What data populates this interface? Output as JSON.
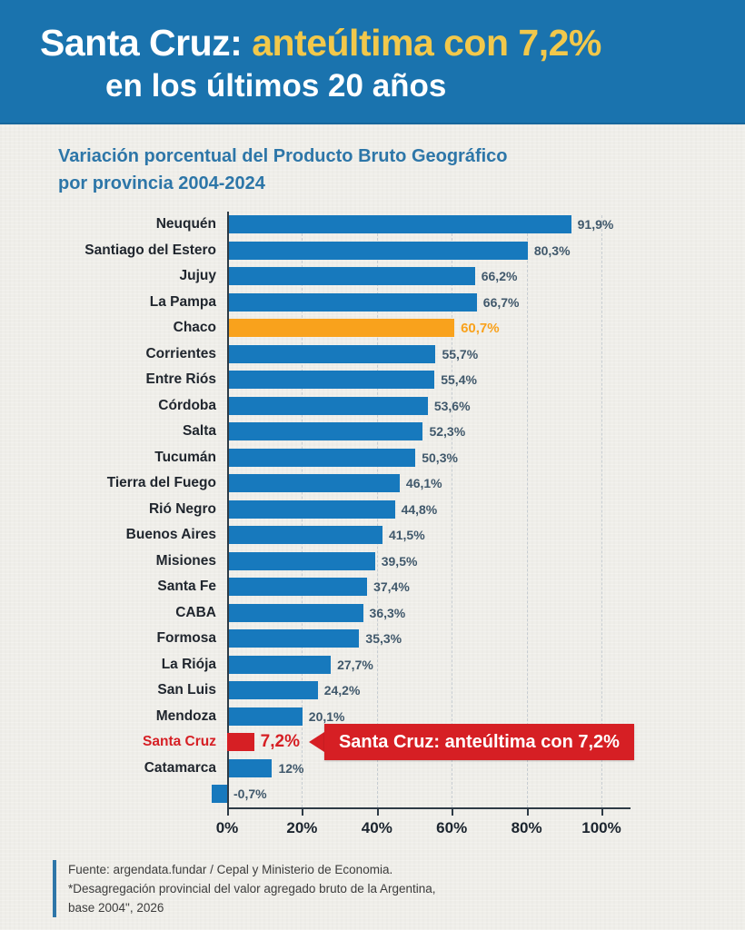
{
  "header": {
    "title_part1": "Santa Cruz:",
    "title_part2": " anteúltima con 7,2%",
    "title_line2": "en los últimos 20 años",
    "bg_color": "#1a73ae",
    "highlight_color": "#f2c84b"
  },
  "subtitle": {
    "line1": "Variación porcentual del Producto Bruto Geográfico",
    "line2": "por provincia 2004-2024",
    "color": "#2d76a8"
  },
  "chart_data": {
    "type": "bar",
    "orientation": "horizontal",
    "title": "Santa Cruz: anteúltima con 7,2% en los últimos 20 años",
    "xlabel": "",
    "ylabel": "",
    "xlim": [
      0,
      100
    ],
    "grid": "dashed-vertical",
    "x_axis": {
      "ticks": [
        "0%",
        "20%",
        "40%",
        "60%",
        "80%",
        "100%"
      ],
      "tick_values": [
        0,
        20,
        40,
        60,
        80,
        100
      ]
    },
    "colors": {
      "default": "#1779bd",
      "orange": "#f9a21c",
      "red": "#d61f24",
      "value_label": "#40586b"
    },
    "rows": [
      {
        "label": "Neuquén",
        "value": 91.9,
        "value_label": "91,9%",
        "color": "default"
      },
      {
        "label": "Santiago del Estero",
        "value": 80.3,
        "value_label": "80,3%",
        "color": "default"
      },
      {
        "label": "Jujuy",
        "value": 66.2,
        "value_label": "66,2%",
        "color": "default"
      },
      {
        "label": "La Pampa",
        "value": 66.7,
        "value_label": "66,7%",
        "color": "default"
      },
      {
        "label": "Chaco",
        "value": 60.7,
        "value_label": "60,7%",
        "color": "orange"
      },
      {
        "label": "Corrientes",
        "value": 55.7,
        "value_label": "55,7%",
        "color": "default"
      },
      {
        "label": "Entre Riós",
        "value": 55.4,
        "value_label": "55,4%",
        "color": "default"
      },
      {
        "label": "Córdoba",
        "value": 53.6,
        "value_label": "53,6%",
        "color": "default"
      },
      {
        "label": "Salta",
        "value": 52.3,
        "value_label": "52,3%",
        "color": "default"
      },
      {
        "label": "Tucumán",
        "value": 50.3,
        "value_label": "50,3%",
        "color": "default"
      },
      {
        "label": "Tierra del Fuego",
        "value": 46.1,
        "value_label": "46,1%",
        "color": "default"
      },
      {
        "label": "Rió Negro",
        "value": 44.8,
        "value_label": "44,8%",
        "color": "default"
      },
      {
        "label": "Buenos Aires",
        "value": 41.5,
        "value_label": "41,5%",
        "color": "default"
      },
      {
        "label": "Misiones",
        "value": 39.5,
        "value_label": "39,5%",
        "color": "default"
      },
      {
        "label": "Santa Fe",
        "value": 37.4,
        "value_label": "37,4%",
        "color": "default"
      },
      {
        "label": "CABA",
        "value": 36.3,
        "value_label": "36,3%",
        "color": "default"
      },
      {
        "label": "Formosa",
        "value": 35.3,
        "value_label": "35,3%",
        "color": "default"
      },
      {
        "label": "La Riója",
        "value": 27.7,
        "value_label": "27,7%",
        "color": "default"
      },
      {
        "label": "San Luis",
        "value": 24.2,
        "value_label": "24,2%",
        "color": "default"
      },
      {
        "label": "Mendoza",
        "value": 20.1,
        "value_label": "20,1%",
        "color": "default"
      },
      {
        "label": "Santa Cruz",
        "value": 7.2,
        "value_label": "7,2%",
        "color": "red",
        "callout": "Santa Cruz: anteúltima con 7,2%"
      },
      {
        "label": "Catamarca",
        "value": 12,
        "value_label": "12%",
        "color": "default"
      },
      {
        "label": "",
        "value": -0.7,
        "value_label": "-0,7%",
        "color": "default"
      }
    ]
  },
  "footer": {
    "line1": "Fuente: argendata.fundar / Cepal y Ministerio de Economia.",
    "line2": "*Desagregación provincial del valor agregado bruto de la Argentina,",
    "line3": "base 2004\", 2026"
  }
}
